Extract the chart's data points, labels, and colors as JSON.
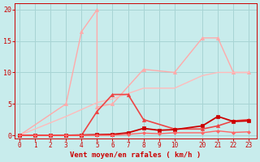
{
  "title": "",
  "xlabel": "Vent moyen/en rafales ( km/h )",
  "ylabel": "",
  "bg_color": "#c8ecec",
  "grid_color": "#a8d4d4",
  "text_color": "#cc0000",
  "xtick_labels": [
    "0",
    "1",
    "2",
    "3",
    "4",
    "5",
    "6",
    "7",
    "8",
    "9",
    "10",
    "20",
    "21",
    "22",
    "23"
  ],
  "xtick_pos": [
    0,
    1,
    2,
    3,
    4,
    5,
    6,
    7,
    8,
    9,
    10,
    11.8,
    12.8,
    13.8,
    14.8
  ],
  "yticks": [
    0,
    5,
    10,
    15,
    20
  ],
  "ylim": [
    -0.5,
    21
  ],
  "xlim": [
    -0.3,
    15.3
  ],
  "lines": [
    {
      "xraw": [
        0,
        3,
        4,
        5,
        5,
        6,
        8,
        10,
        20,
        21,
        22,
        23
      ],
      "y": [
        0,
        5,
        16.5,
        20,
        4.5,
        5,
        10.5,
        10,
        15.5,
        15.5,
        10,
        10
      ],
      "color": "#ffaaaa",
      "lw": 1.0,
      "marker": "^",
      "ms": 3
    },
    {
      "xraw": [
        0,
        3,
        5,
        6,
        8,
        10,
        20,
        21,
        22,
        23
      ],
      "y": [
        0,
        3,
        5.2,
        5.8,
        7.5,
        7.5,
        9.5,
        10,
        10,
        10
      ],
      "color": "#ffbbbb",
      "lw": 1.0,
      "marker": null,
      "ms": 0
    },
    {
      "xraw": [
        0,
        3,
        4,
        5,
        6,
        7,
        8,
        10,
        20,
        21,
        22,
        23
      ],
      "y": [
        0,
        0,
        0,
        3.8,
        6.5,
        6.5,
        2.5,
        1,
        1,
        1.5,
        2.3,
        2.5
      ],
      "color": "#ee4444",
      "lw": 1.2,
      "marker": "^",
      "ms": 3
    },
    {
      "xraw": [
        0,
        1,
        2,
        3,
        4,
        5,
        6,
        7,
        8,
        9,
        10,
        20,
        21,
        22,
        23
      ],
      "y": [
        0,
        0,
        0,
        0,
        0.05,
        0.1,
        0.15,
        0.4,
        1.1,
        0.8,
        0.9,
        1.5,
        3.0,
        2.2,
        2.3
      ],
      "color": "#cc0000",
      "lw": 1.3,
      "marker": "s",
      "ms": 2.5
    },
    {
      "xraw": [
        0,
        1,
        2,
        3,
        4,
        5,
        6,
        7,
        8,
        9,
        10,
        20,
        21,
        22,
        23
      ],
      "y": [
        0,
        0,
        0,
        0,
        0,
        0,
        0,
        0.15,
        0.35,
        0.25,
        0.4,
        0.4,
        0.7,
        0.45,
        0.55
      ],
      "color": "#ff6666",
      "lw": 1.0,
      "marker": "D",
      "ms": 2
    }
  ]
}
